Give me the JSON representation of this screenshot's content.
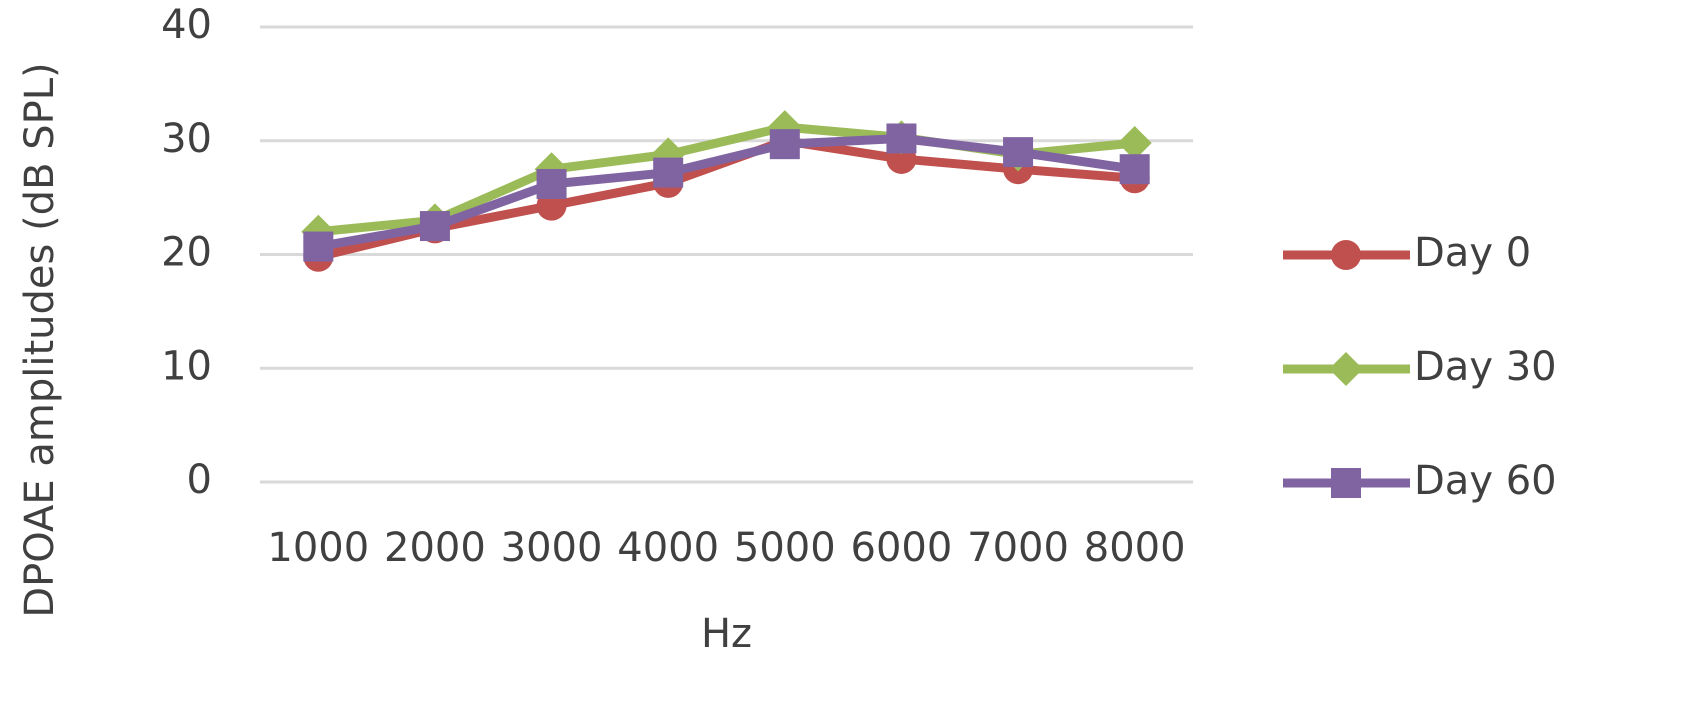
{
  "chart_data": {
    "type": "line",
    "x_label": "Hz",
    "y_label": "DPOAE amplitudes (dB SPL)",
    "categories": [
      "1000",
      "2000",
      "3000",
      "4000",
      "5000",
      "6000",
      "7000",
      "8000"
    ],
    "series": [
      {
        "name": "Day 0",
        "color": "#c0504d",
        "marker": "circle",
        "values": [
          19.8,
          22.3,
          24.3,
          26.3,
          30,
          28.4,
          27.5,
          26.7
        ]
      },
      {
        "name": "Day 30",
        "color": "#9bbb59",
        "marker": "diamond",
        "values": [
          22,
          23,
          27.5,
          28.8,
          31.2,
          30.3,
          28.8,
          29.8
        ]
      },
      {
        "name": "Day 60",
        "color": "#8064a2",
        "marker": "square",
        "values": [
          20.7,
          22.5,
          26.2,
          27.2,
          29.7,
          30.2,
          29,
          27.5
        ]
      }
    ],
    "ylim": [
      0,
      40
    ],
    "yticks": [
      0,
      10,
      20,
      30,
      40
    ],
    "grid": true,
    "legend": "right"
  }
}
